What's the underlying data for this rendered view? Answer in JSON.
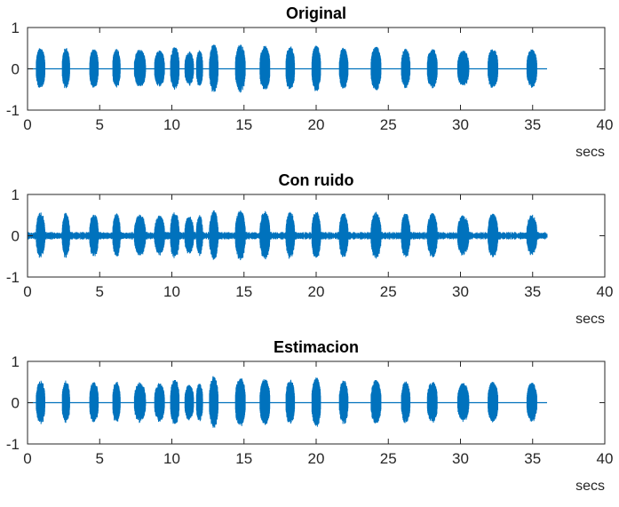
{
  "chart_data": [
    {
      "type": "line",
      "title": "Original",
      "xlabel": "secs",
      "ylabel": "",
      "xlim": [
        0,
        40
      ],
      "ylim": [
        -1,
        1
      ],
      "xticks": [
        "0",
        "5",
        "10",
        "15",
        "20",
        "25",
        "30",
        "35",
        "40"
      ],
      "yticks": [
        "1",
        "0",
        "-1"
      ],
      "series_color": "#0072BD",
      "signal_end": 36,
      "noise_floor": 0.0,
      "bursts": [
        {
          "start": 0.6,
          "end": 1.3,
          "amp": 0.52
        },
        {
          "start": 2.4,
          "end": 3.0,
          "amp": 0.52
        },
        {
          "start": 4.3,
          "end": 5.0,
          "amp": 0.5
        },
        {
          "start": 5.9,
          "end": 6.5,
          "amp": 0.5
        },
        {
          "start": 7.4,
          "end": 8.3,
          "amp": 0.48
        },
        {
          "start": 8.8,
          "end": 9.6,
          "amp": 0.45
        },
        {
          "start": 9.9,
          "end": 10.6,
          "amp": 0.55
        },
        {
          "start": 10.9,
          "end": 11.6,
          "amp": 0.42
        },
        {
          "start": 11.7,
          "end": 12.2,
          "amp": 0.46
        },
        {
          "start": 12.6,
          "end": 13.3,
          "amp": 0.6
        },
        {
          "start": 14.4,
          "end": 15.2,
          "amp": 0.6
        },
        {
          "start": 16.1,
          "end": 16.9,
          "amp": 0.56
        },
        {
          "start": 17.9,
          "end": 18.6,
          "amp": 0.55
        },
        {
          "start": 19.7,
          "end": 20.4,
          "amp": 0.58
        },
        {
          "start": 21.6,
          "end": 22.3,
          "amp": 0.52
        },
        {
          "start": 23.8,
          "end": 24.6,
          "amp": 0.55
        },
        {
          "start": 25.9,
          "end": 26.6,
          "amp": 0.5
        },
        {
          "start": 27.7,
          "end": 28.5,
          "amp": 0.5
        },
        {
          "start": 29.8,
          "end": 30.7,
          "amp": 0.45
        },
        {
          "start": 31.9,
          "end": 32.7,
          "amp": 0.5
        },
        {
          "start": 34.6,
          "end": 35.4,
          "amp": 0.48
        }
      ]
    },
    {
      "type": "line",
      "title": "Con ruido",
      "xlabel": "secs",
      "ylabel": "",
      "xlim": [
        0,
        40
      ],
      "ylim": [
        -1,
        1
      ],
      "xticks": [
        "0",
        "5",
        "10",
        "15",
        "20",
        "25",
        "30",
        "35",
        "40"
      ],
      "yticks": [
        "1",
        "0",
        "-1"
      ],
      "series_color": "#0072BD",
      "signal_end": 36,
      "noise_floor": 0.09,
      "bursts": [
        {
          "start": 0.6,
          "end": 1.3,
          "amp": 0.57
        },
        {
          "start": 2.4,
          "end": 3.0,
          "amp": 0.57
        },
        {
          "start": 4.3,
          "end": 5.0,
          "amp": 0.55
        },
        {
          "start": 5.9,
          "end": 6.5,
          "amp": 0.55
        },
        {
          "start": 7.4,
          "end": 8.3,
          "amp": 0.52
        },
        {
          "start": 8.8,
          "end": 9.6,
          "amp": 0.5
        },
        {
          "start": 9.9,
          "end": 10.6,
          "amp": 0.58
        },
        {
          "start": 10.9,
          "end": 11.6,
          "amp": 0.48
        },
        {
          "start": 11.7,
          "end": 12.2,
          "amp": 0.5
        },
        {
          "start": 12.6,
          "end": 13.3,
          "amp": 0.62
        },
        {
          "start": 14.4,
          "end": 15.2,
          "amp": 0.62
        },
        {
          "start": 16.1,
          "end": 16.9,
          "amp": 0.6
        },
        {
          "start": 17.9,
          "end": 18.6,
          "amp": 0.58
        },
        {
          "start": 19.7,
          "end": 20.4,
          "amp": 0.6
        },
        {
          "start": 21.6,
          "end": 22.3,
          "amp": 0.55
        },
        {
          "start": 23.8,
          "end": 24.6,
          "amp": 0.58
        },
        {
          "start": 25.9,
          "end": 26.6,
          "amp": 0.55
        },
        {
          "start": 27.7,
          "end": 28.5,
          "amp": 0.55
        },
        {
          "start": 29.8,
          "end": 30.7,
          "amp": 0.5
        },
        {
          "start": 31.9,
          "end": 32.7,
          "amp": 0.55
        },
        {
          "start": 34.6,
          "end": 35.4,
          "amp": 0.52
        }
      ]
    },
    {
      "type": "line",
      "title": "Estimacion",
      "xlabel": "secs",
      "ylabel": "",
      "xlim": [
        0,
        40
      ],
      "ylim": [
        -1,
        1
      ],
      "xticks": [
        "0",
        "5",
        "10",
        "15",
        "20",
        "25",
        "30",
        "35",
        "40"
      ],
      "yticks": [
        "1",
        "0",
        "-1"
      ],
      "series_color": "#0072BD",
      "signal_end": 36,
      "noise_floor": 0.0,
      "bursts": [
        {
          "start": 0.6,
          "end": 1.3,
          "amp": 0.55
        },
        {
          "start": 2.4,
          "end": 3.0,
          "amp": 0.55
        },
        {
          "start": 4.3,
          "end": 5.0,
          "amp": 0.52
        },
        {
          "start": 5.9,
          "end": 6.5,
          "amp": 0.52
        },
        {
          "start": 7.4,
          "end": 8.3,
          "amp": 0.5
        },
        {
          "start": 8.8,
          "end": 9.6,
          "amp": 0.48
        },
        {
          "start": 9.9,
          "end": 10.6,
          "amp": 0.58
        },
        {
          "start": 10.9,
          "end": 11.6,
          "amp": 0.45
        },
        {
          "start": 11.7,
          "end": 12.2,
          "amp": 0.48
        },
        {
          "start": 12.6,
          "end": 13.3,
          "amp": 0.65
        },
        {
          "start": 14.4,
          "end": 15.2,
          "amp": 0.62
        },
        {
          "start": 16.1,
          "end": 16.9,
          "amp": 0.58
        },
        {
          "start": 17.9,
          "end": 18.6,
          "amp": 0.56
        },
        {
          "start": 19.7,
          "end": 20.4,
          "amp": 0.62
        },
        {
          "start": 21.6,
          "end": 22.3,
          "amp": 0.55
        },
        {
          "start": 23.8,
          "end": 24.6,
          "amp": 0.56
        },
        {
          "start": 25.9,
          "end": 26.6,
          "amp": 0.52
        },
        {
          "start": 27.7,
          "end": 28.5,
          "amp": 0.52
        },
        {
          "start": 29.8,
          "end": 30.7,
          "amp": 0.48
        },
        {
          "start": 31.9,
          "end": 32.7,
          "amp": 0.52
        },
        {
          "start": 34.6,
          "end": 35.4,
          "amp": 0.5
        }
      ]
    }
  ]
}
